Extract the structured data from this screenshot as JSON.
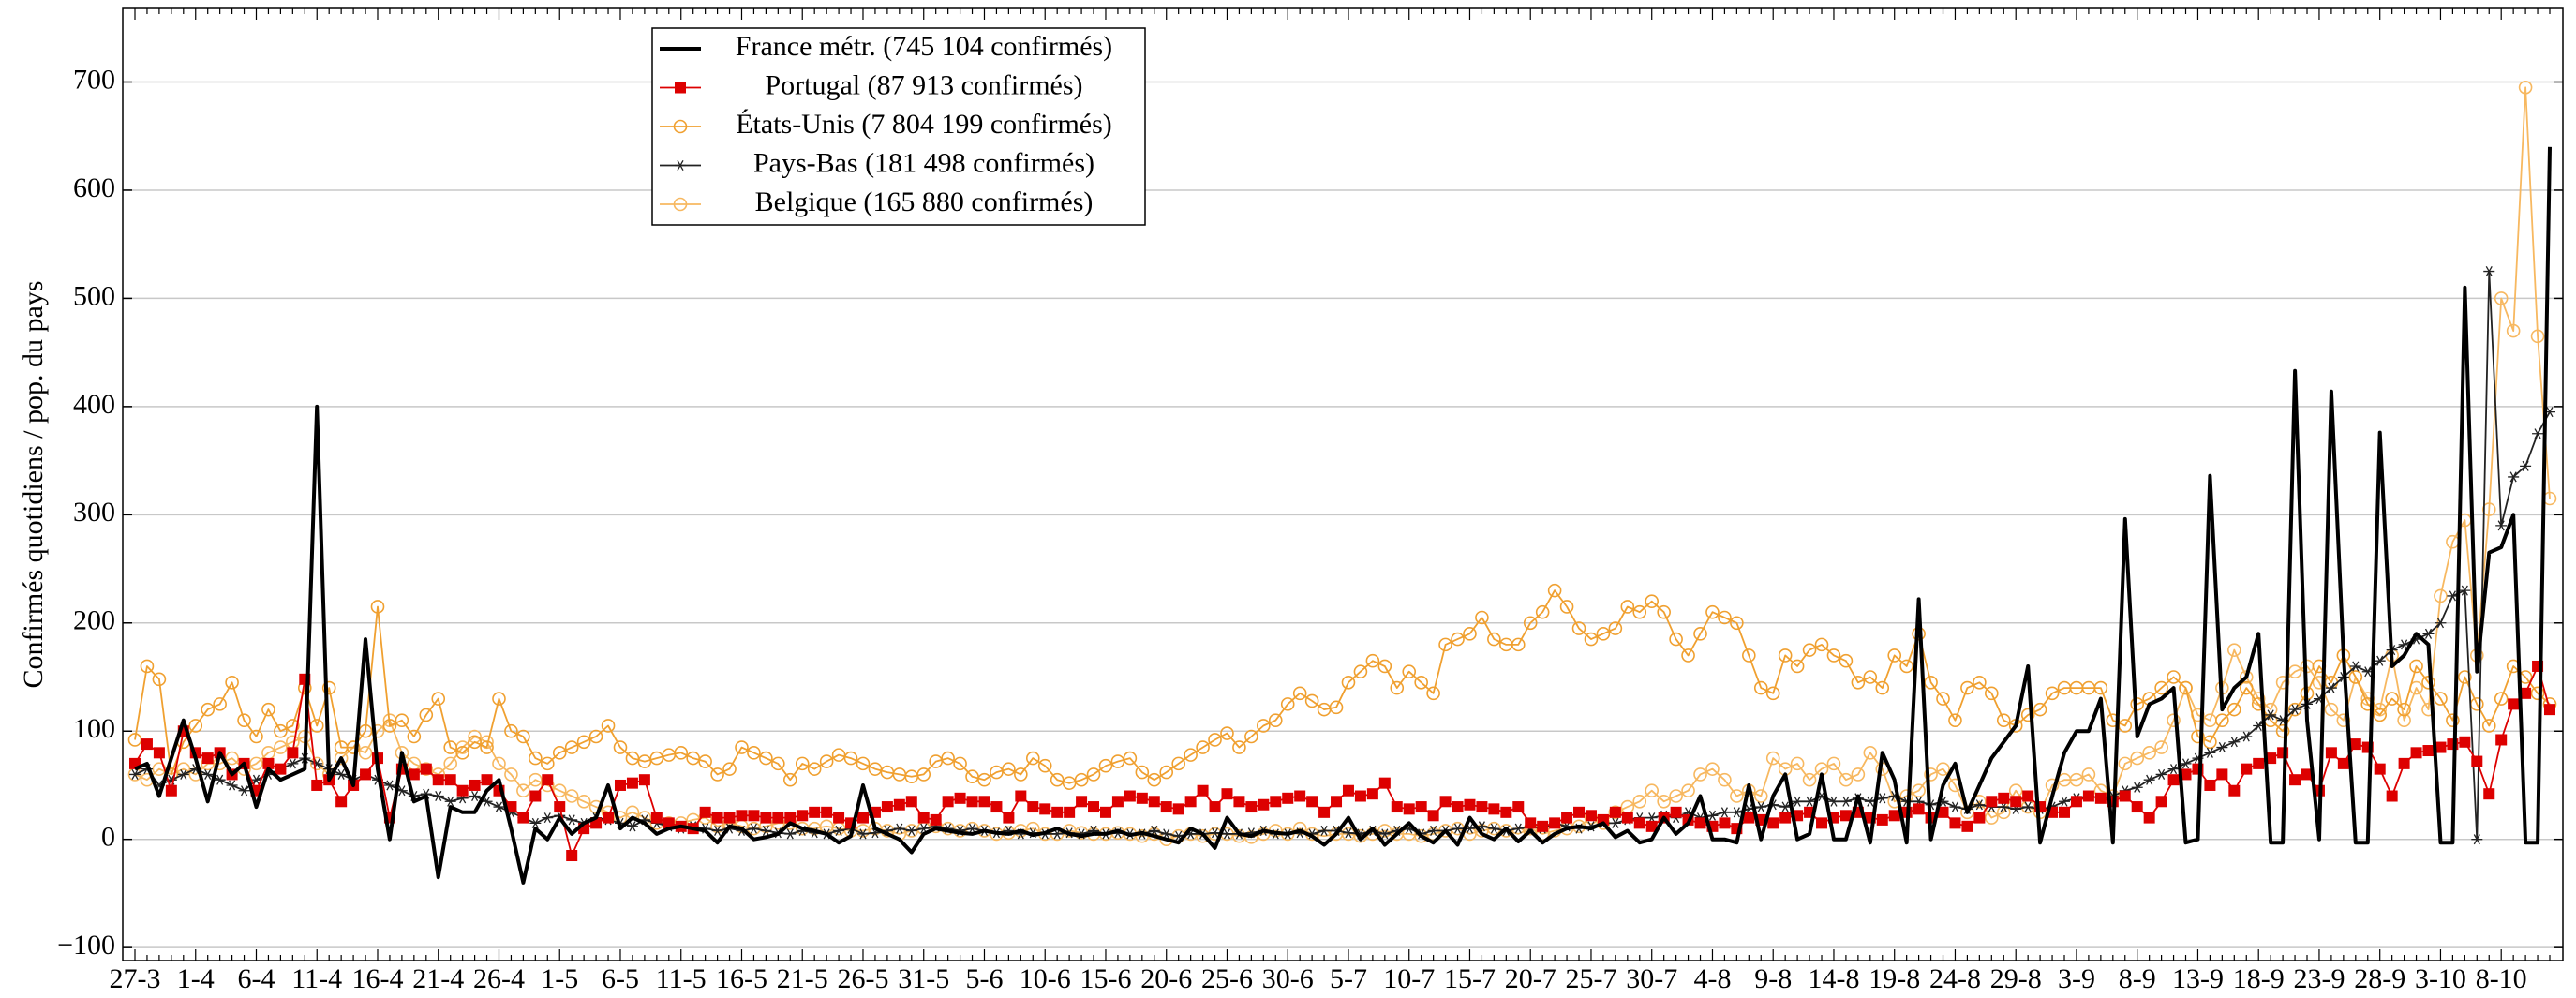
{
  "chart_data": {
    "type": "line",
    "ylabel": "Confirmés quotidiens / pop. du pays",
    "categories": [
      "27-3",
      null,
      null,
      null,
      null,
      "1-4",
      null,
      null,
      null,
      null,
      "6-4",
      null,
      null,
      null,
      null,
      "11-4",
      null,
      null,
      null,
      null,
      "16-4",
      null,
      null,
      null,
      null,
      "21-4",
      null,
      null,
      null,
      null,
      "26-4",
      null,
      null,
      null,
      null,
      "1-5",
      null,
      null,
      null,
      null,
      "6-5",
      null,
      null,
      null,
      null,
      "11-5",
      null,
      null,
      null,
      null,
      "16-5",
      null,
      null,
      null,
      null,
      "21-5",
      null,
      null,
      null,
      null,
      "26-5",
      null,
      null,
      null,
      null,
      "31-5",
      null,
      null,
      null,
      null,
      "5-6",
      null,
      null,
      null,
      null,
      "10-6",
      null,
      null,
      null,
      null,
      "15-6",
      null,
      null,
      null,
      null,
      "20-6",
      null,
      null,
      null,
      null,
      "25-6",
      null,
      null,
      null,
      null,
      "30-6",
      null,
      null,
      null,
      null,
      "5-7",
      null,
      null,
      null,
      null,
      "10-7",
      null,
      null,
      null,
      null,
      "15-7",
      null,
      null,
      null,
      null,
      "20-7",
      null,
      null,
      null,
      null,
      "25-7",
      null,
      null,
      null,
      null,
      "30-7",
      null,
      null,
      null,
      null,
      "4-8",
      null,
      null,
      null,
      null,
      "9-8",
      null,
      null,
      null,
      null,
      "14-8",
      null,
      null,
      null,
      null,
      "19-8",
      null,
      null,
      null,
      null,
      "24-8",
      null,
      null,
      null,
      null,
      "29-8",
      null,
      null,
      null,
      null,
      "3-9",
      null,
      null,
      null,
      null,
      "8-9",
      null,
      null,
      null,
      null,
      "13-9",
      null,
      null,
      null,
      null,
      "18-9",
      null,
      null,
      null,
      null,
      "23-9",
      null,
      null,
      null,
      null,
      "28-9",
      null,
      null,
      null,
      null,
      "3-10",
      null,
      null,
      null,
      null,
      "8-10",
      null,
      null,
      null,
      null
    ],
    "series": [
      {
        "name": "France métr. (745 104 confirmés)",
        "color": "#000000",
        "marker": "none",
        "values": [
          65,
          70,
          40,
          75,
          110,
          75,
          35,
          80,
          60,
          70,
          30,
          65,
          55,
          60,
          65,
          400,
          55,
          75,
          50,
          185,
          65,
          0,
          80,
          35,
          40,
          -35,
          30,
          25,
          25,
          45,
          55,
          10,
          -40,
          10,
          0,
          20,
          5,
          15,
          20,
          50,
          10,
          20,
          15,
          5,
          10,
          12,
          10,
          8,
          -3,
          12,
          10,
          0,
          2,
          5,
          15,
          10,
          8,
          5,
          -3,
          3,
          50,
          10,
          5,
          0,
          -12,
          5,
          10,
          8,
          6,
          5,
          8,
          6,
          5,
          8,
          4,
          6,
          10,
          5,
          3,
          5,
          5,
          8,
          4,
          6,
          3,
          0,
          -3,
          10,
          5,
          -8,
          20,
          5,
          3,
          8,
          6,
          5,
          8,
          3,
          -5,
          5,
          20,
          0,
          10,
          -5,
          5,
          15,
          3,
          -3,
          8,
          -5,
          20,
          5,
          0,
          10,
          -2,
          8,
          -3,
          5,
          10,
          12,
          10,
          15,
          2,
          8,
          -3,
          0,
          20,
          5,
          15,
          40,
          0,
          0,
          -3,
          50,
          0,
          40,
          60,
          0,
          5,
          60,
          0,
          0,
          40,
          -3,
          80,
          55,
          -3,
          222,
          0,
          50,
          70,
          25,
          50,
          75,
          90,
          105,
          160,
          -3,
          40,
          80,
          100,
          100,
          130,
          -3,
          296,
          95,
          125,
          130,
          140,
          -3,
          0,
          336,
          120,
          140,
          150,
          190,
          -3,
          -3,
          433,
          110,
          0,
          414,
          170,
          -3,
          -3,
          376,
          160,
          170,
          190,
          180,
          -3,
          -3,
          510,
          155,
          265,
          270,
          300,
          -3,
          -3,
          640
        ]
      },
      {
        "name": "Portugal (87 913 confirmés)",
        "color": "#dd0000",
        "marker": "square",
        "values": [
          70,
          88,
          80,
          45,
          100,
          80,
          75,
          80,
          60,
          70,
          45,
          70,
          65,
          80,
          148,
          50,
          55,
          35,
          50,
          60,
          75,
          20,
          65,
          60,
          65,
          55,
          55,
          45,
          50,
          55,
          45,
          30,
          20,
          40,
          55,
          30,
          -15,
          10,
          15,
          20,
          50,
          52,
          55,
          20,
          15,
          12,
          10,
          25,
          20,
          20,
          22,
          22,
          20,
          20,
          20,
          22,
          25,
          25,
          20,
          15,
          20,
          25,
          30,
          32,
          35,
          20,
          18,
          35,
          38,
          35,
          35,
          30,
          20,
          40,
          30,
          28,
          25,
          25,
          35,
          30,
          25,
          35,
          40,
          38,
          35,
          30,
          28,
          35,
          45,
          30,
          42,
          35,
          30,
          32,
          35,
          38,
          40,
          35,
          25,
          35,
          45,
          40,
          42,
          52,
          30,
          28,
          30,
          22,
          35,
          30,
          32,
          30,
          28,
          25,
          30,
          15,
          12,
          15,
          20,
          25,
          22,
          18,
          25,
          20,
          15,
          12,
          20,
          25,
          18,
          15,
          12,
          15,
          10,
          20,
          18,
          15,
          20,
          22,
          25,
          15,
          20,
          22,
          25,
          20,
          18,
          22,
          25,
          28,
          20,
          25,
          15,
          12,
          20,
          35,
          38,
          35,
          40,
          30,
          25,
          25,
          35,
          40,
          38,
          35,
          40,
          30,
          20,
          35,
          55,
          60,
          65,
          50,
          60,
          45,
          65,
          70,
          75,
          80,
          55,
          60,
          45,
          80,
          70,
          88,
          85,
          65,
          40,
          70,
          80,
          82,
          85,
          88,
          90,
          72,
          42,
          92,
          125,
          135,
          160,
          120
        ]
      },
      {
        "name": "États-Unis (7 804 199 confirmés)",
        "color": "#f0a030",
        "marker": "circle",
        "values": [
          92,
          160,
          148,
          60,
          90,
          105,
          120,
          125,
          145,
          110,
          95,
          120,
          100,
          105,
          140,
          105,
          140,
          85,
          85,
          100,
          215,
          105,
          110,
          95,
          115,
          130,
          85,
          80,
          90,
          85,
          130,
          100,
          95,
          75,
          70,
          80,
          85,
          90,
          95,
          105,
          85,
          75,
          72,
          75,
          78,
          80,
          75,
          72,
          60,
          65,
          85,
          80,
          75,
          70,
          55,
          70,
          65,
          72,
          78,
          75,
          70,
          65,
          62,
          60,
          58,
          60,
          72,
          75,
          70,
          58,
          55,
          62,
          65,
          60,
          75,
          68,
          55,
          52,
          55,
          60,
          68,
          72,
          75,
          62,
          55,
          62,
          70,
          78,
          85,
          92,
          98,
          85,
          95,
          105,
          110,
          125,
          135,
          128,
          120,
          122,
          145,
          155,
          165,
          160,
          140,
          155,
          145,
          135,
          180,
          185,
          190,
          205,
          185,
          180,
          180,
          200,
          210,
          230,
          215,
          195,
          185,
          190,
          195,
          215,
          210,
          220,
          210,
          185,
          170,
          190,
          210,
          205,
          200,
          170,
          140,
          135,
          170,
          160,
          175,
          180,
          170,
          165,
          145,
          150,
          140,
          170,
          160,
          190,
          145,
          130,
          110,
          140,
          145,
          135,
          110,
          105,
          115,
          120,
          135,
          140,
          140,
          140,
          140,
          110,
          105,
          125,
          130,
          140,
          150,
          140,
          95,
          90,
          110,
          120,
          140,
          125,
          110,
          100,
          120,
          135,
          160,
          145,
          170,
          150,
          125,
          115,
          130,
          120,
          160,
          145,
          130,
          110,
          150,
          125,
          105,
          130,
          160,
          150,
          135,
          125
        ]
      },
      {
        "name": "Pays-Bas (181 498 confirmés)",
        "color": "#222222",
        "marker": "star",
        "values": [
          60,
          65,
          50,
          55,
          60,
          65,
          60,
          55,
          50,
          45,
          55,
          60,
          65,
          70,
          75,
          70,
          65,
          60,
          55,
          60,
          55,
          50,
          45,
          40,
          42,
          40,
          35,
          38,
          40,
          35,
          30,
          25,
          20,
          15,
          20,
          22,
          18,
          15,
          20,
          18,
          15,
          12,
          18,
          15,
          12,
          10,
          12,
          10,
          8,
          10,
          8,
          10,
          8,
          6,
          5,
          8,
          6,
          5,
          8,
          10,
          5,
          6,
          8,
          10,
          8,
          10,
          12,
          10,
          8,
          10,
          8,
          6,
          8,
          5,
          6,
          5,
          5,
          6,
          5,
          8,
          5,
          6,
          5,
          5,
          8,
          5,
          3,
          5,
          5,
          6,
          5,
          5,
          6,
          8,
          5,
          5,
          6,
          5,
          8,
          8,
          6,
          5,
          8,
          5,
          8,
          10,
          5,
          8,
          8,
          10,
          10,
          12,
          10,
          8,
          10,
          12,
          10,
          15,
          12,
          10,
          12,
          15,
          15,
          18,
          20,
          20,
          22,
          20,
          25,
          20,
          22,
          25,
          25,
          28,
          30,
          32,
          30,
          35,
          35,
          40,
          35,
          35,
          38,
          35,
          38,
          40,
          35,
          35,
          32,
          35,
          30,
          28,
          32,
          30,
          30,
          28,
          30,
          28,
          30,
          35,
          38,
          40,
          38,
          40,
          45,
          48,
          55,
          60,
          65,
          70,
          75,
          80,
          85,
          90,
          95,
          105,
          115,
          110,
          120,
          125,
          130,
          140,
          150,
          160,
          155,
          165,
          175,
          180,
          185,
          190,
          200,
          225,
          230,
          0,
          525,
          290,
          335,
          345,
          375,
          395
        ]
      },
      {
        "name": "Belgique (165 880 confirmés)",
        "color": "#f7b860",
        "marker": "circle",
        "values": [
          60,
          55,
          65,
          60,
          65,
          60,
          70,
          70,
          75,
          65,
          70,
          80,
          85,
          90,
          95,
          70,
          60,
          75,
          85,
          80,
          100,
          110,
          80,
          70,
          65,
          60,
          70,
          85,
          95,
          90,
          70,
          60,
          45,
          55,
          50,
          45,
          40,
          35,
          30,
          25,
          20,
          25,
          20,
          15,
          15,
          15,
          18,
          20,
          12,
          15,
          12,
          10,
          12,
          15,
          15,
          10,
          10,
          12,
          10,
          8,
          8,
          10,
          8,
          5,
          8,
          10,
          12,
          10,
          8,
          10,
          8,
          5,
          6,
          8,
          10,
          5,
          5,
          8,
          6,
          5,
          5,
          6,
          5,
          3,
          5,
          0,
          3,
          5,
          3,
          5,
          5,
          3,
          2,
          5,
          8,
          5,
          10,
          5,
          3,
          5,
          5,
          3,
          5,
          8,
          5,
          5,
          3,
          5,
          8,
          10,
          5,
          8,
          10,
          8,
          5,
          10,
          5,
          8,
          10,
          12,
          20,
          15,
          25,
          30,
          35,
          45,
          35,
          40,
          45,
          60,
          65,
          55,
          40,
          45,
          40,
          75,
          65,
          70,
          55,
          65,
          70,
          55,
          60,
          80,
          65,
          35,
          40,
          45,
          60,
          65,
          50,
          25,
          35,
          20,
          25,
          45,
          30,
          25,
          50,
          55,
          55,
          60,
          45,
          40,
          70,
          75,
          80,
          85,
          110,
          140,
          115,
          110,
          140,
          175,
          150,
          130,
          120,
          145,
          155,
          160,
          145,
          120,
          110,
          150,
          130,
          120,
          170,
          110,
          140,
          120,
          225,
          275,
          295,
          170,
          305,
          500,
          470,
          695,
          465,
          315
        ]
      }
    ],
    "ylim": [
      -112,
      768
    ],
    "yticks": [
      {
        "value": -100,
        "label": "−100"
      },
      0,
      100,
      200,
      300,
      400,
      500,
      600,
      700
    ],
    "grid": true,
    "legend": "upper left"
  }
}
